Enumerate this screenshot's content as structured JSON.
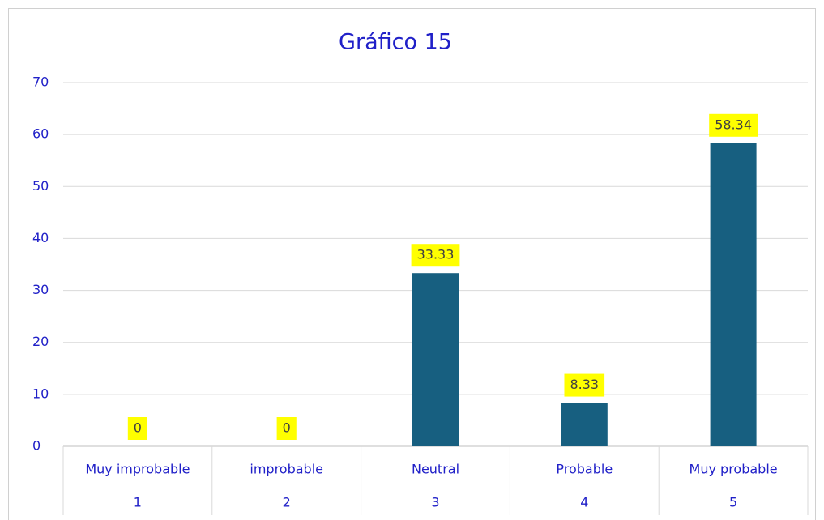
{
  "chart_data": {
    "type": "bar",
    "title": "Gráfico 15",
    "categories": [
      "Muy improbable",
      "improbable",
      "Neutral",
      "Probable",
      "Muy probable"
    ],
    "category_groups": [
      "1",
      "2",
      "3",
      "4",
      "5"
    ],
    "values": [
      0,
      0,
      33.33,
      8.33,
      58.34
    ],
    "color": "#175f80",
    "label_background": "#ffff00",
    "ylim": [
      0,
      70
    ],
    "yticks": [
      0,
      10,
      20,
      30,
      40,
      50,
      60,
      70
    ],
    "grid": true
  }
}
